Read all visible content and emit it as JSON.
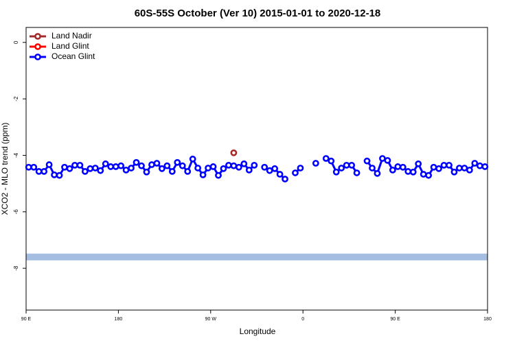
{
  "chart_data": {
    "type": "line",
    "title": "60S-55S October (Ver 10)   2015-01-01 to 2020-12-18",
    "x_label": "Longitude",
    "y_label": "XCO2 - MLO trend (ppm)",
    "xlim": [
      90,
      540
    ],
    "xticks": [
      {
        "value": 90,
        "label": "90 E"
      },
      180,
      {
        "value": 270,
        "label": "90 W"
      },
      {
        "value": 360,
        "label": "0"
      },
      {
        "value": 450,
        "label": "90 E"
      },
      {
        "value": 540,
        "label": "180"
      }
    ],
    "ylim": [
      -9.48,
      0.53
    ],
    "yticks": [
      0,
      -2,
      -4,
      -6,
      -8
    ],
    "band": {
      "color": "#a5bde0",
      "range": [
        -7.72,
        -7.48
      ]
    },
    "legend": "top-left",
    "series": [
      {
        "name": "Land Nadir",
        "color": "#a52a2a",
        "x": [
          292.5
        ],
        "values": [
          -3.91
        ]
      },
      {
        "name": "Land Glint",
        "color": "#ff0000",
        "x": [],
        "values": []
      },
      {
        "name": "Ocean Glint",
        "color": "#0000ff",
        "x": [
          92.5,
          97.5,
          102.5,
          107.5,
          112.5,
          117.5,
          122.5,
          127.5,
          132.5,
          137.5,
          142.5,
          147.5,
          152.5,
          157.5,
          162.5,
          167.5,
          172.5,
          177.5,
          182.5,
          187.5,
          192.5,
          197.5,
          202.5,
          207.5,
          212.5,
          217.5,
          222.5,
          227.5,
          232.5,
          237.5,
          242.5,
          247.5,
          252.5,
          257.5,
          262.5,
          267.5,
          272.5,
          277.5,
          282.5,
          287.5,
          292.5,
          297.5,
          302.5,
          307.5,
          312.5,
          317.5,
          322.5,
          327.5,
          332.5,
          337.5,
          342.5,
          347.5,
          352.5,
          357.5,
          362.5,
          367.5,
          372.5,
          377.5,
          382.5,
          387.5,
          392.5,
          397.5,
          402.5,
          407.5,
          412.5,
          417.5,
          422.5,
          427.5,
          432.5,
          437.5,
          442.5,
          447.5,
          452.5,
          457.5,
          462.5,
          467.5,
          472.5,
          477.5,
          482.5,
          487.5,
          492.5,
          497.5,
          502.5,
          507.5,
          512.5,
          517.5,
          522.5,
          527.5,
          532.5,
          537.5
        ],
        "values": [
          -4.42,
          -4.42,
          -4.57,
          -4.57,
          -4.33,
          -4.69,
          -4.71,
          -4.42,
          -4.47,
          -4.35,
          -4.35,
          -4.57,
          -4.47,
          -4.45,
          -4.54,
          -4.3,
          -4.4,
          -4.4,
          -4.37,
          -4.52,
          -4.45,
          -4.25,
          -4.37,
          -4.59,
          -4.33,
          -4.28,
          -4.47,
          -4.37,
          -4.57,
          -4.25,
          -4.37,
          -4.57,
          -4.13,
          -4.45,
          -4.69,
          -4.45,
          -4.4,
          -4.71,
          -4.47,
          -4.35,
          -4.37,
          -4.42,
          -4.3,
          -4.52,
          -4.35,
          null,
          -4.42,
          -4.54,
          -4.47,
          -4.67,
          -4.84,
          null,
          -4.62,
          -4.45,
          null,
          null,
          -4.28,
          null,
          -4.11,
          -4.2,
          -4.59,
          -4.45,
          -4.35,
          -4.35,
          -4.62,
          null,
          -4.2,
          -4.45,
          -4.64,
          -4.11,
          -4.18,
          -4.52,
          -4.4,
          -4.42,
          -4.57,
          -4.59,
          -4.3,
          -4.67,
          -4.71,
          -4.42,
          -4.47,
          -4.35,
          -4.35,
          -4.59,
          -4.45,
          -4.45,
          -4.52,
          -4.28,
          -4.37,
          -4.4
        ]
      }
    ]
  }
}
